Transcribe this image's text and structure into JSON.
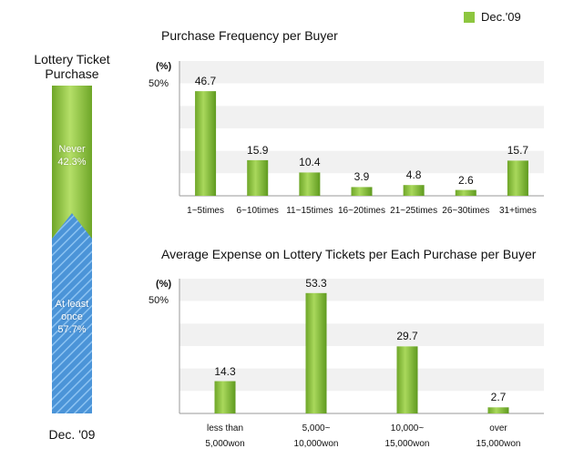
{
  "legend": {
    "label": "Dec.'09",
    "color": "#8dc63f"
  },
  "colors": {
    "bar": "#8dc63f",
    "never": "#9acd3a",
    "at_least_once": "#5aa2e0"
  },
  "chart_data": [
    {
      "type": "bar",
      "title": "Lottery Ticket Purchase",
      "categories": [
        "Dec. '09"
      ],
      "stacked": true,
      "series": [
        {
          "name": "Never",
          "values": [
            42.3
          ],
          "label": "Never 42.3%"
        },
        {
          "name": "At least once",
          "values": [
            57.7
          ],
          "label": "At least once 57.7%"
        }
      ]
    },
    {
      "type": "bar",
      "title": "Purchase Frequency per Buyer",
      "unit": "(%)",
      "ytick": "50%",
      "ylim": [
        0,
        60
      ],
      "grid": true,
      "legend": "top-right",
      "categories": [
        "1~5times",
        "6~10times",
        "11~15times",
        "16~20times",
        "21~25times",
        "26~30times",
        "31+times"
      ],
      "values": [
        46.7,
        15.9,
        10.4,
        3.9,
        4.8,
        2.6,
        15.7
      ],
      "value_labels": [
        "46.7",
        "15.9",
        "10.4",
        "3.9",
        "4.8",
        "2.6",
        "15.7"
      ]
    },
    {
      "type": "bar",
      "title": "Average Expense on Lottery Tickets per Each Purchase per Buyer",
      "unit": "(%)",
      "ytick": "50%",
      "ylim": [
        0,
        60
      ],
      "grid": true,
      "categories": [
        [
          "less than",
          "5,000won"
        ],
        [
          "5,000~",
          "10,000won"
        ],
        [
          "10,000~",
          "15,000won"
        ],
        [
          "over",
          "15,000won"
        ]
      ],
      "values": [
        14.3,
        53.3,
        29.7,
        2.7
      ],
      "value_labels": [
        "14.3",
        "53.3",
        "29.7",
        "2.7"
      ]
    }
  ]
}
